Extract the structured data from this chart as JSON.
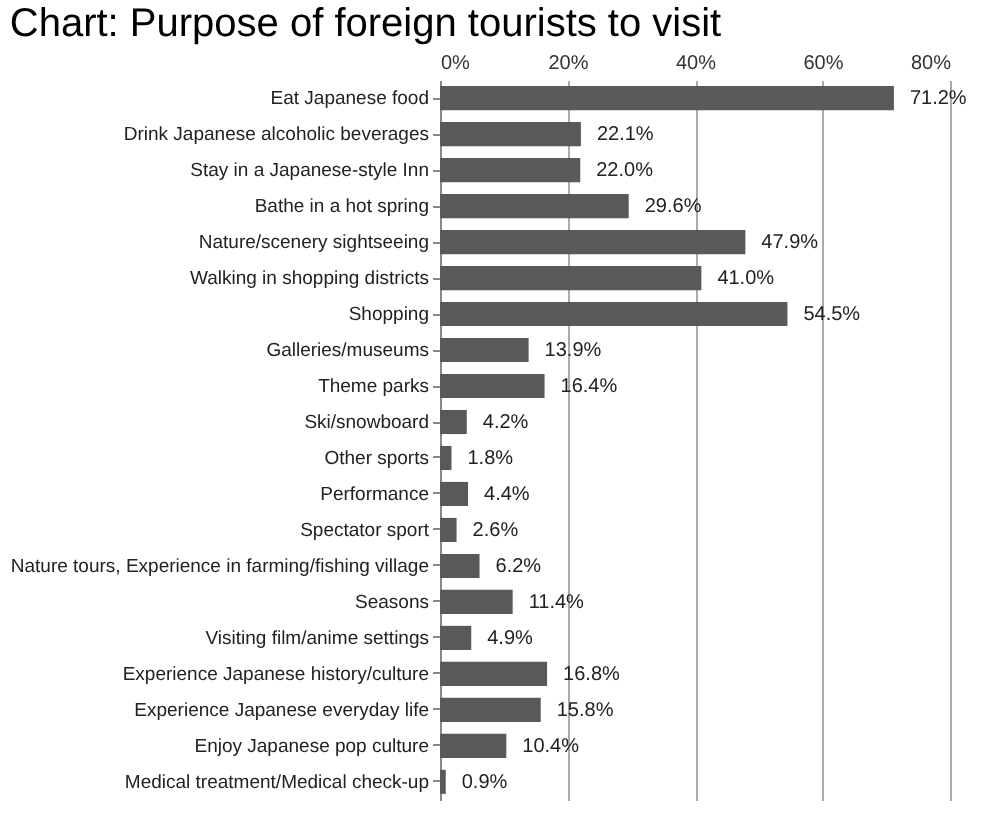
{
  "chart_data": {
    "type": "bar",
    "orientation": "horizontal",
    "title": "Chart: Purpose of foreign tourists to visit",
    "categories": [
      "Eat Japanese food",
      "Drink Japanese alcoholic beverages",
      "Stay in a Japanese-style Inn",
      "Bathe in a hot spring",
      "Nature/scenery sightseeing",
      "Walking in shopping districts",
      "Shopping",
      "Galleries/museums",
      "Theme parks",
      "Ski/snowboard",
      "Other sports",
      "Performance",
      "Spectator sport",
      "Nature tours, Experience in farming/fishing village",
      "Seasons",
      "Visiting film/anime settings",
      "Experience Japanese history/culture",
      "Experience Japanese everyday life",
      "Enjoy Japanese pop culture",
      "Medical treatment/Medical check-up"
    ],
    "values": [
      71.2,
      22.1,
      22.0,
      29.6,
      47.9,
      41.0,
      54.5,
      13.9,
      16.4,
      4.2,
      1.8,
      4.4,
      2.6,
      6.2,
      11.4,
      4.9,
      16.8,
      15.8,
      10.4,
      0.9
    ],
    "value_labels": [
      "71.2%",
      "22.1%",
      "22.0%",
      "29.6%",
      "47.9%",
      "41.0%",
      "54.5%",
      "13.9%",
      "16.4%",
      "4.2%",
      "1.8%",
      "4.4%",
      "2.6%",
      "6.2%",
      "11.4%",
      "4.9%",
      "16.8%",
      "15.8%",
      "10.4%",
      "0.9%"
    ],
    "color": "#595959",
    "xlim": [
      0,
      80
    ],
    "xticks": [
      {
        "value": 0,
        "label": "0%"
      },
      {
        "value": 20,
        "label": "20%"
      },
      {
        "value": 40,
        "label": "40%"
      },
      {
        "value": 60,
        "label": "60%"
      },
      {
        "value": 80,
        "label": "80%"
      }
    ],
    "grid": "x"
  }
}
